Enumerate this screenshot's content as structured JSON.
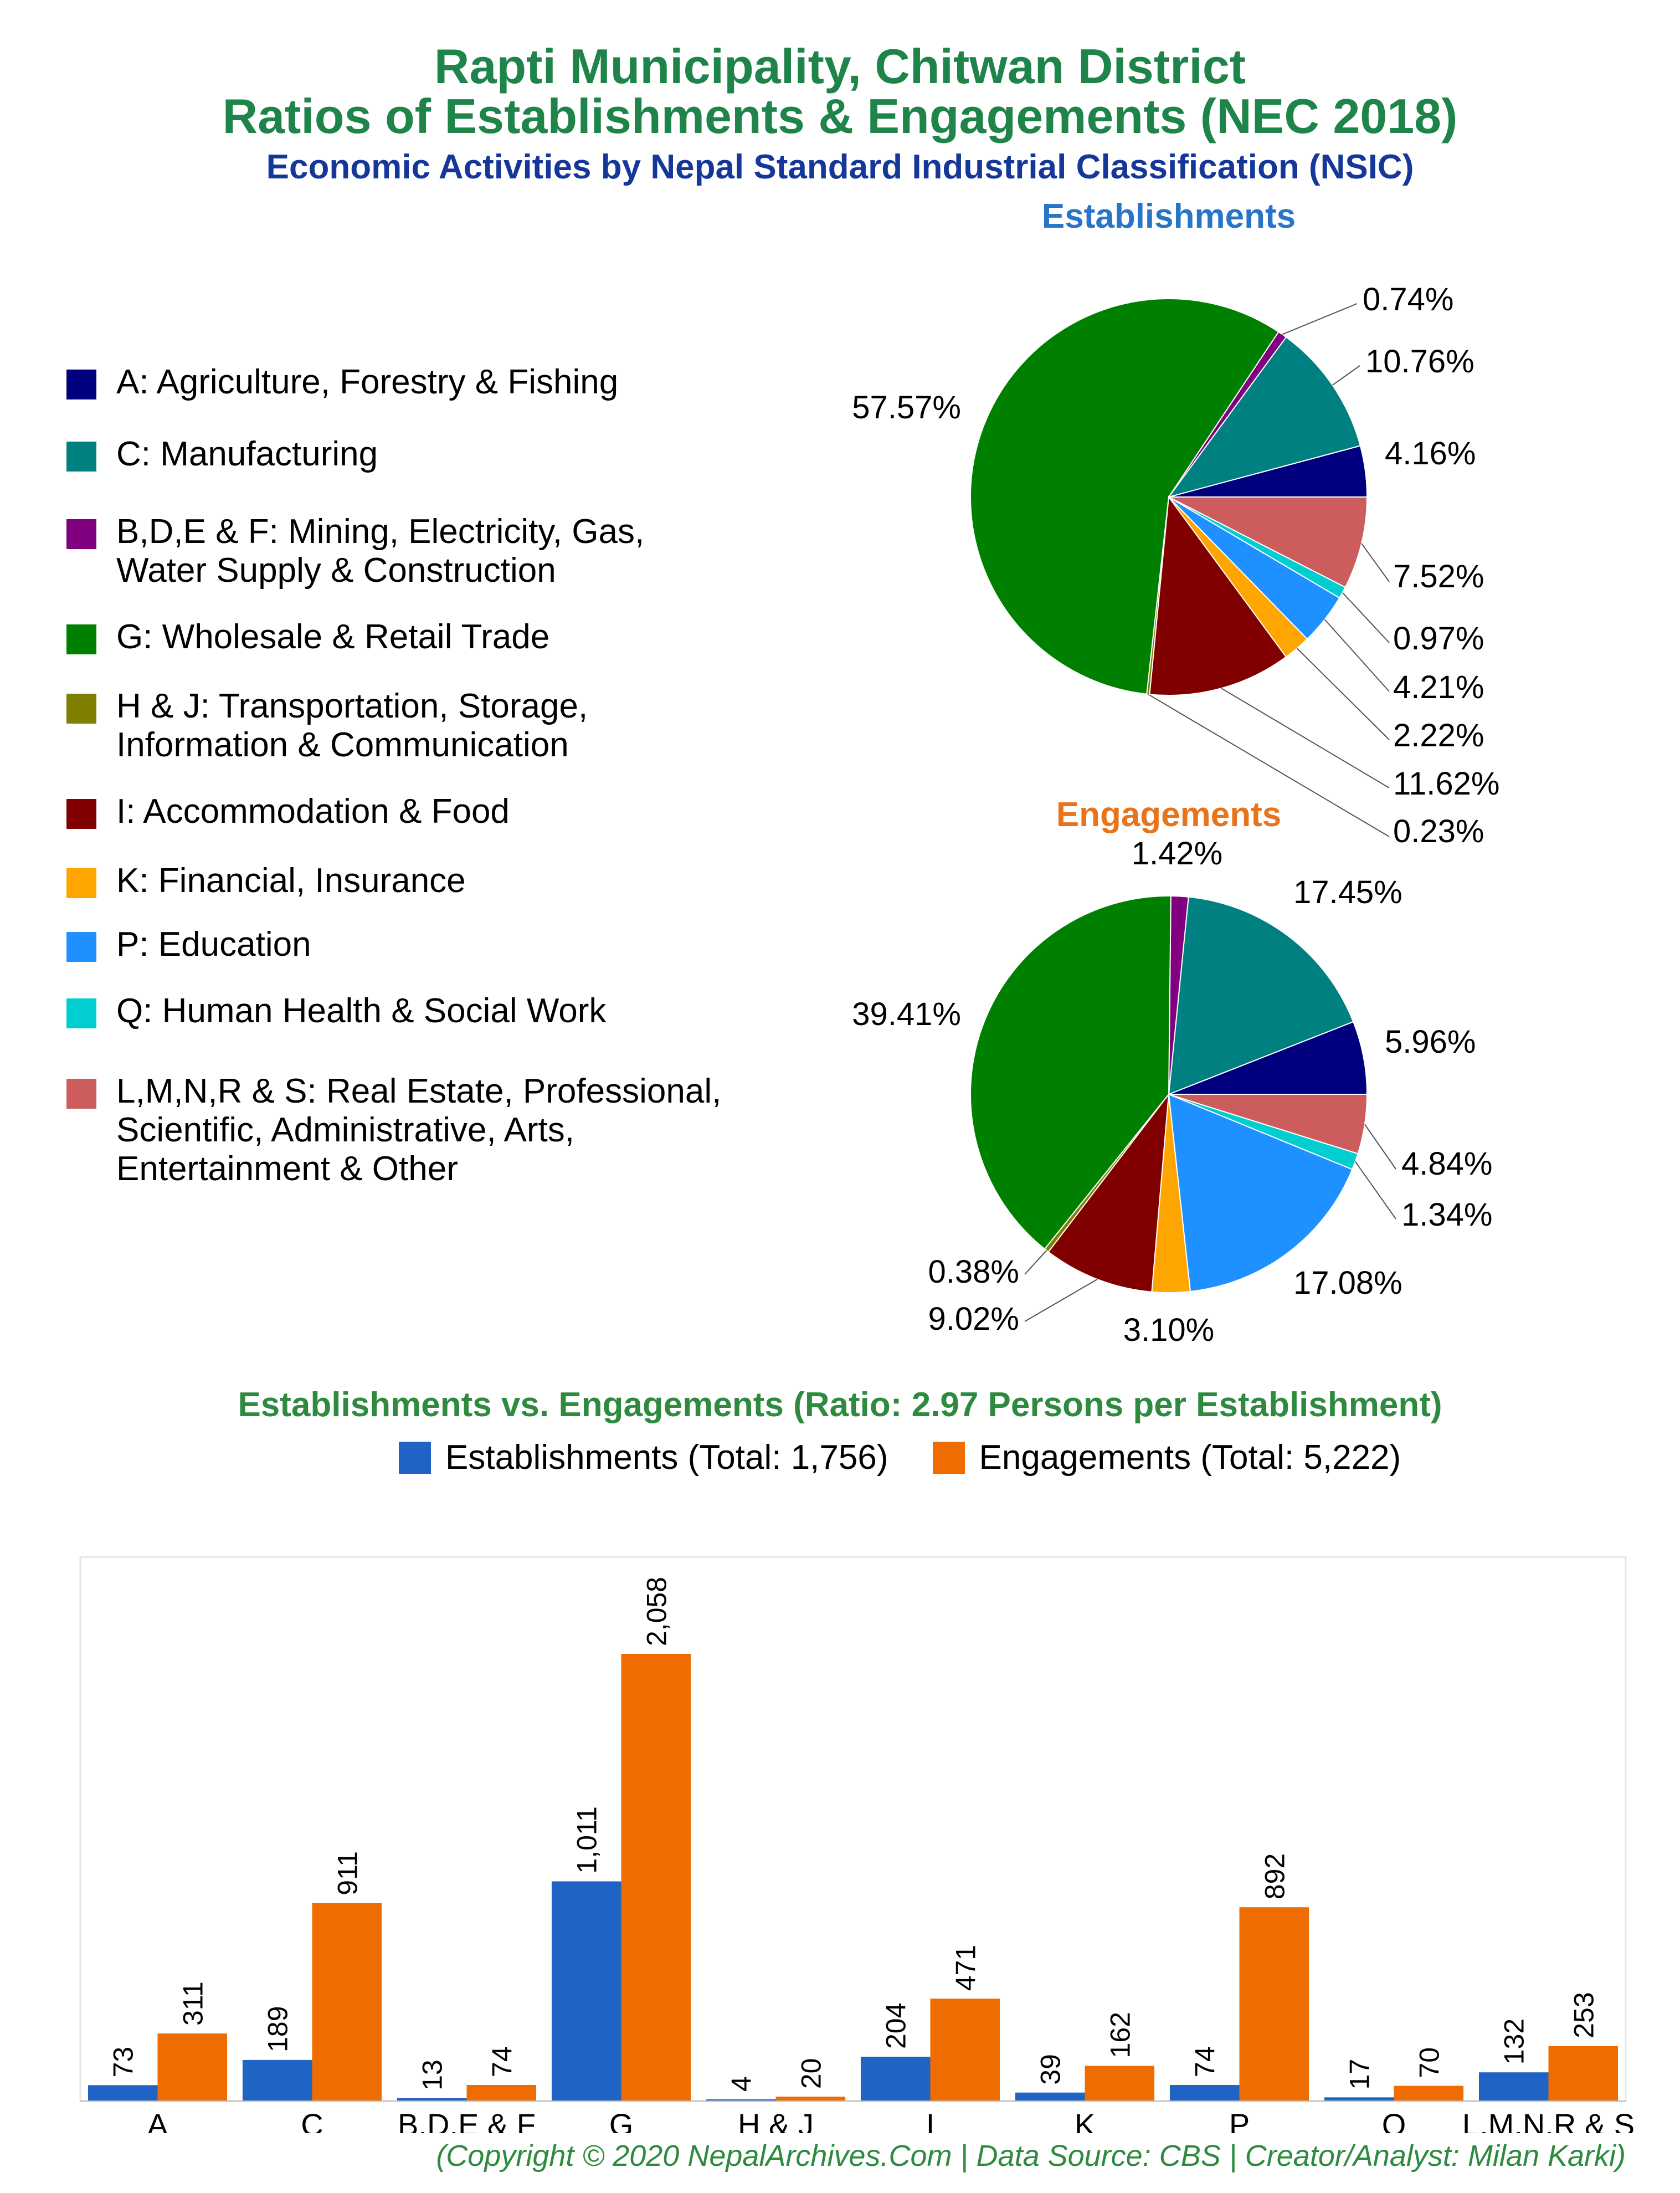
{
  "title_line1": "Rapti Municipality, Chitwan District",
  "title_line2": "Ratios of Establishments & Engagements (NEC 2018)",
  "subtitle": "Economic Activities by Nepal Standard Industrial Classification (NSIC)",
  "legend": [
    {
      "label": "A: Agriculture, Forestry & Fishing",
      "color": "#00007f"
    },
    {
      "label": "C: Manufacturing",
      "color": "#008080"
    },
    {
      "label": "B,D,E & F: Mining, Electricity, Gas,\nWater Supply & Construction",
      "color": "#800080"
    },
    {
      "label": "G: Wholesale & Retail Trade",
      "color": "#008000"
    },
    {
      "label": "H & J: Transportation, Storage,\nInformation & Communication",
      "color": "#808000"
    },
    {
      "label": "I: Accommodation & Food",
      "color": "#800000"
    },
    {
      "label": "K: Financial, Insurance",
      "color": "#ffa500"
    },
    {
      "label": "P: Education",
      "color": "#1e90ff"
    },
    {
      "label": "Q: Human Health & Social Work",
      "color": "#00ced1"
    },
    {
      "label": "L,M,N,R & S: Real Estate, Professional,\nScientific, Administrative, Arts,\nEntertainment & Other",
      "color": "#cd5c5c"
    }
  ],
  "chart_data": [
    {
      "type": "pie",
      "title": "Establishments",
      "categories": [
        "A",
        "C",
        "B,D,E & F",
        "G",
        "H & J",
        "I",
        "K",
        "P",
        "Q",
        "L,M,N,R & S"
      ],
      "values": [
        4.16,
        10.76,
        0.74,
        57.57,
        0.23,
        11.62,
        2.22,
        4.21,
        0.97,
        7.52
      ],
      "labels": [
        "4.16%",
        "10.76%",
        "0.74%",
        "57.57%",
        "0.23%",
        "11.62%",
        "2.22%",
        "4.21%",
        "0.97%",
        "7.52%"
      ]
    },
    {
      "type": "pie",
      "title": "Engagements",
      "categories": [
        "A",
        "C",
        "B,D,E & F",
        "G",
        "H & J",
        "I",
        "K",
        "P",
        "Q",
        "L,M,N,R & S"
      ],
      "values": [
        5.96,
        17.45,
        1.42,
        39.41,
        0.38,
        9.02,
        3.1,
        17.08,
        1.34,
        4.84
      ],
      "labels": [
        "5.96%",
        "17.45%",
        "1.42%",
        "39.41%",
        "0.38%",
        "9.02%",
        "3.10%",
        "17.08%",
        "1.34%",
        "4.84%"
      ]
    },
    {
      "type": "bar",
      "title": "Establishments vs. Engagements (Ratio: 2.97 Persons per Establishment)",
      "categories": [
        "A",
        "C",
        "B,D,E & F",
        "G",
        "H & J",
        "I",
        "K",
        "P",
        "Q",
        "L,M,N,R & S"
      ],
      "series": [
        {
          "name": "Establishments (Total: 1,756)",
          "color": "#1f64c4",
          "values": [
            73,
            189,
            13,
            1011,
            4,
            204,
            39,
            74,
            17,
            132
          ],
          "labels": [
            "73",
            "189",
            "13",
            "1,011",
            "4",
            "204",
            "39",
            "74",
            "17",
            "132"
          ]
        },
        {
          "name": "Engagements (Total: 5,222)",
          "color": "#ef6c00",
          "values": [
            311,
            911,
            74,
            2058,
            20,
            471,
            162,
            892,
            70,
            253
          ],
          "labels": [
            "311",
            "911",
            "74",
            "2,058",
            "20",
            "471",
            "162",
            "892",
            "70",
            "253"
          ]
        }
      ],
      "ylim": [
        0,
        2058
      ]
    }
  ],
  "footer": "(Copyright © 2020 NepalArchives.Com | Data Source: CBS | Creator/Analyst: Milan Karki)"
}
